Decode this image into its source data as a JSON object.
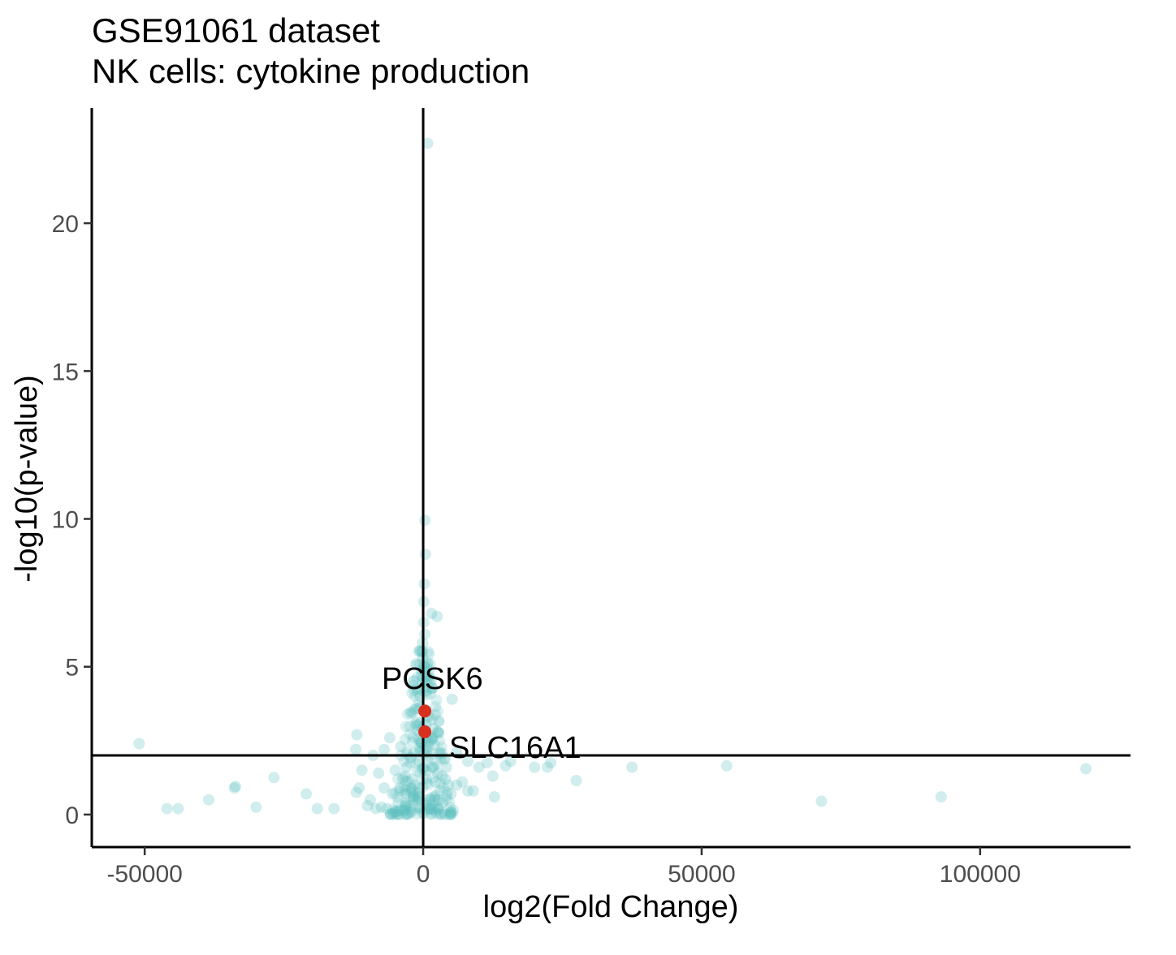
{
  "chart_data": {
    "type": "scatter",
    "title": "GSE91061 dataset",
    "subtitle": "NK cells: cytokine production",
    "xlabel": "log2(Fold Change)",
    "ylabel": "-log10(p-value)",
    "xlim": [
      -59500,
      127000
    ],
    "ylim": [
      -1.1,
      23.9
    ],
    "x_ticks": [
      -50000,
      0,
      50000,
      100000
    ],
    "x_tick_labels": [
      "-50000",
      "0",
      "50000",
      "100000"
    ],
    "y_ticks": [
      0,
      5,
      10,
      15,
      20
    ],
    "y_tick_labels": [
      "0",
      "5",
      "10",
      "15",
      "20"
    ],
    "grid": false,
    "reference_lines": {
      "vertical_x": 0,
      "horizontal_y": 2
    },
    "colors": {
      "background_points": "#5BC0C0",
      "highlight_points": "#D7301F",
      "lines": "#000000"
    },
    "highlighted": [
      {
        "label": "PCSK6",
        "x": 300,
        "y": 3.5
      },
      {
        "label": "SLC16A1",
        "x": 300,
        "y": 2.8
      }
    ],
    "points": [
      [
        800,
        22.7
      ],
      [
        300,
        9.95
      ],
      [
        400,
        8.8
      ],
      [
        200,
        7.8
      ],
      [
        100,
        7.2
      ],
      [
        1500,
        6.8
      ],
      [
        2500,
        6.7
      ],
      [
        100,
        6.5
      ],
      [
        300,
        6.1
      ],
      [
        -100,
        5.8
      ],
      [
        -200,
        5.5
      ],
      [
        -100,
        5.3
      ],
      [
        200,
        5.0
      ],
      [
        -300,
        4.7
      ],
      [
        400,
        4.5
      ],
      [
        5200,
        3.9
      ],
      [
        600,
        4.2
      ],
      [
        -500,
        4.0
      ],
      [
        -800,
        3.6
      ],
      [
        1000,
        3.3
      ],
      [
        -1200,
        3.0
      ],
      [
        1500,
        2.5
      ],
      [
        -51000,
        2.4
      ],
      [
        -11900,
        2.7
      ],
      [
        -12100,
        2.2
      ],
      [
        -6000,
        2.6
      ],
      [
        -4000,
        2.3
      ],
      [
        -7000,
        2.2
      ],
      [
        3000,
        2.1
      ],
      [
        6000,
        2.1
      ],
      [
        8000,
        1.8
      ],
      [
        10000,
        1.6
      ],
      [
        11500,
        1.75
      ],
      [
        14800,
        1.65
      ],
      [
        15700,
        1.8
      ],
      [
        20000,
        1.6
      ],
      [
        22300,
        1.6
      ],
      [
        22900,
        1.75
      ],
      [
        37500,
        1.6
      ],
      [
        54500,
        1.65
      ],
      [
        119000,
        1.55
      ],
      [
        -9000,
        2.0
      ],
      [
        -11000,
        1.5
      ],
      [
        -8000,
        1.4
      ],
      [
        -5000,
        1.5
      ],
      [
        -3000,
        1.6
      ],
      [
        -2000,
        1.2
      ],
      [
        -1500,
        1.0
      ],
      [
        -11500,
        0.9
      ],
      [
        -12000,
        0.75
      ],
      [
        -7000,
        0.9
      ],
      [
        -5500,
        0.7
      ],
      [
        -9500,
        0.5
      ],
      [
        -10000,
        0.3
      ],
      [
        -8500,
        0.2
      ],
      [
        -7500,
        0.25
      ],
      [
        -6500,
        0.2
      ],
      [
        -4500,
        0.4
      ],
      [
        -3500,
        0.15
      ],
      [
        -2500,
        0.3
      ],
      [
        -1800,
        0.5
      ],
      [
        -1000,
        0.6
      ],
      [
        -600,
        0.2
      ],
      [
        600,
        0.3
      ],
      [
        1200,
        0.5
      ],
      [
        2000,
        0.6
      ],
      [
        3000,
        0.8
      ],
      [
        3500,
        0.4
      ],
      [
        4500,
        1.0
      ],
      [
        5000,
        0.7
      ],
      [
        6000,
        1.0
      ],
      [
        7000,
        1.1
      ],
      [
        8000,
        0.8
      ],
      [
        9000,
        0.8
      ],
      [
        12500,
        1.3
      ],
      [
        12800,
        0.6
      ],
      [
        2600,
        1.4
      ],
      [
        4000,
        1.2
      ],
      [
        27500,
        1.15
      ],
      [
        -26800,
        1.25
      ],
      [
        -33700,
        0.95
      ],
      [
        -33900,
        0.9
      ],
      [
        -21000,
        0.7
      ],
      [
        -38500,
        0.5
      ],
      [
        -30000,
        0.25
      ],
      [
        -46000,
        0.2
      ],
      [
        -44000,
        0.2
      ],
      [
        -19000,
        0.2
      ],
      [
        -16000,
        0.2
      ],
      [
        71500,
        0.45
      ],
      [
        93000,
        0.6
      ],
      [
        700,
        1.9
      ],
      [
        1700,
        1.6
      ],
      [
        -700,
        1.8
      ],
      [
        2200,
        1.1
      ],
      [
        -2200,
        0.9
      ],
      [
        1400,
        0.2
      ],
      [
        500,
        1.5
      ],
      [
        -300,
        2.4
      ],
      [
        900,
        2.6
      ],
      [
        1800,
        2.9
      ],
      [
        -1600,
        2.1
      ],
      [
        3400,
        1.3
      ],
      [
        -4200,
        0.9
      ],
      [
        -3000,
        0.7
      ],
      [
        2800,
        0.2
      ],
      [
        3200,
        1.9
      ],
      [
        4200,
        1.6
      ],
      [
        -800,
        0.9
      ]
    ]
  }
}
